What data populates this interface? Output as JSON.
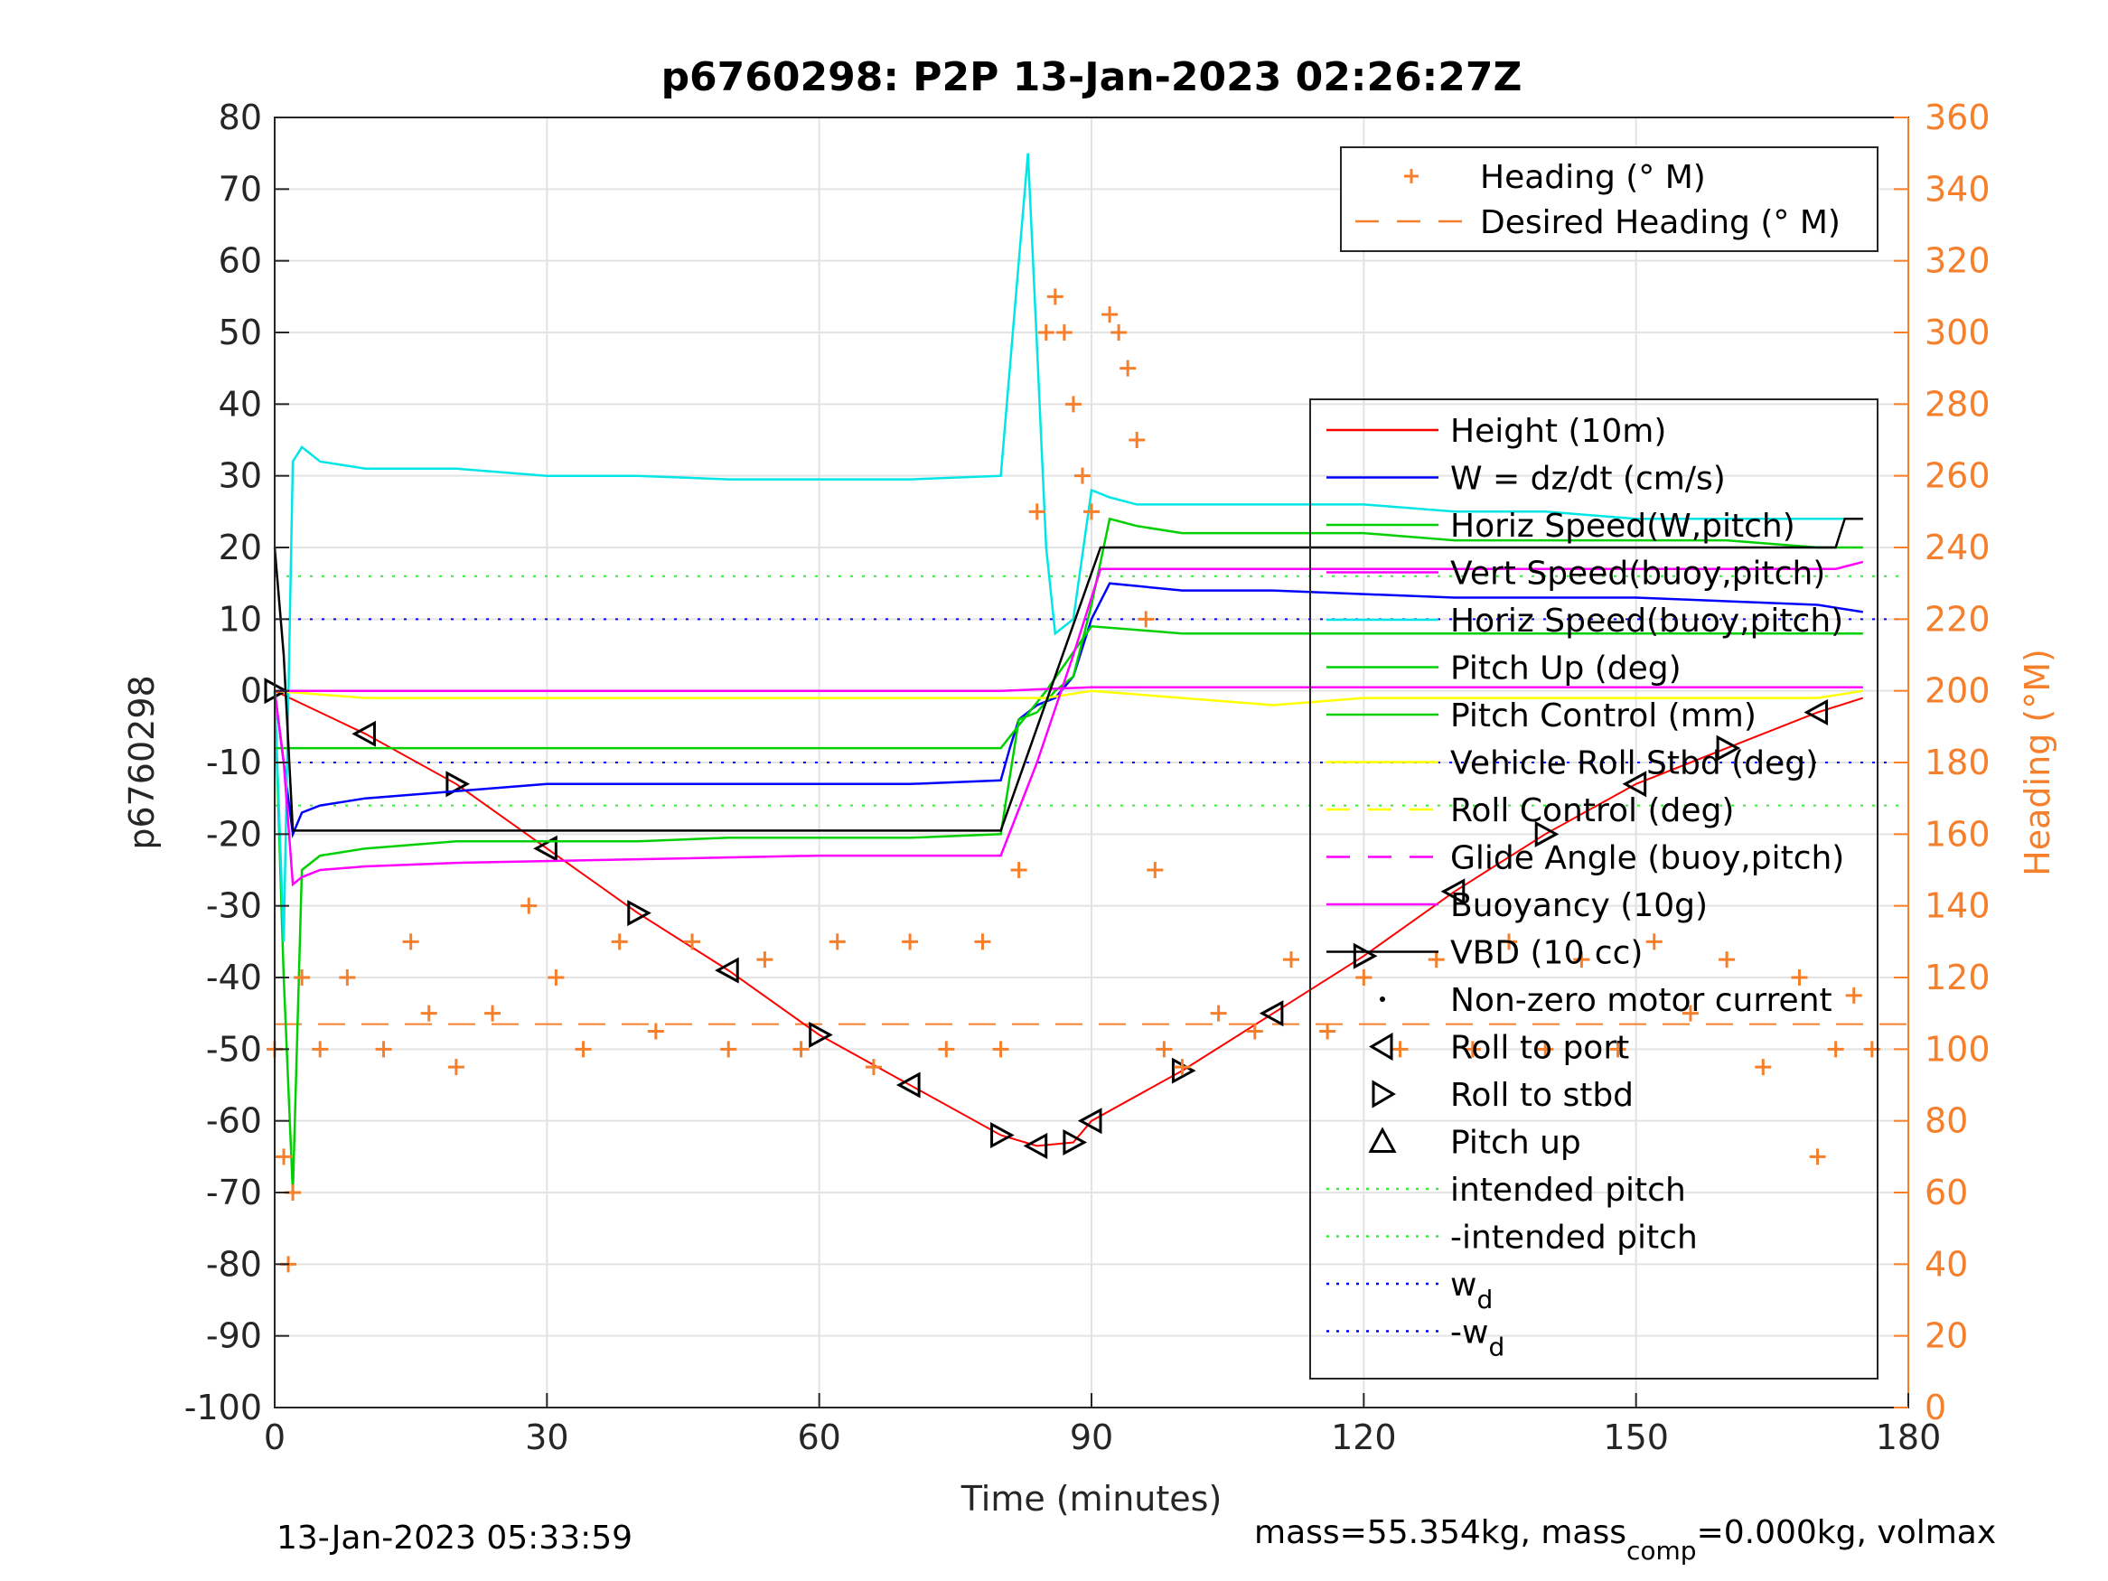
{
  "figure": {
    "title": "p6760298: P2P 13-Jan-2023 02:26:27Z",
    "footer_left": "13-Jan-2023 05:33:59",
    "footer_right": {
      "a": "mass=55.354kg, mass",
      "sub": "comp",
      "b": "=0.000kg, volmax"
    }
  },
  "colors": {
    "orange": "#f57f2b",
    "red": "#ff0000",
    "blue": "#0000ff",
    "green": "#00d000",
    "cyan": "#00e6e6",
    "magenta": "#ff00ff",
    "yellow": "#ffff00",
    "black": "#000000",
    "lightgreen": "#33ee33",
    "grid": "#e3e3e3"
  },
  "chart_data": {
    "type": "line",
    "title": "p6760298: P2P 13-Jan-2023 02:26:27Z",
    "xlabel": "Time (minutes)",
    "ylabel_left": "p6760298",
    "ylabel_right": "Heading (°M)",
    "xlim": [
      0,
      180
    ],
    "ylim_left": [
      -100,
      80
    ],
    "ylim_right": [
      0,
      360
    ],
    "x_ticks": [
      "0",
      "30",
      "60",
      "90",
      "120",
      "150",
      "180"
    ],
    "y_ticks_left": [
      "80",
      "70",
      "60",
      "50",
      "40",
      "30",
      "20",
      "10",
      "0",
      "-10",
      "-20",
      "-30",
      "-40",
      "-50",
      "-60",
      "-70",
      "-80",
      "-90",
      "-100"
    ],
    "y_ticks_right": [
      "360",
      "340",
      "320",
      "300",
      "280",
      "260",
      "240",
      "220",
      "200",
      "180",
      "160",
      "140",
      "120",
      "100",
      "80",
      "60",
      "40",
      "20",
      "0"
    ],
    "grid": true,
    "legend_top": {
      "placement": "top-right",
      "entries": [
        {
          "label": "Heading (° M)",
          "color": "orange",
          "style": "plus"
        },
        {
          "label": "Desired Heading (° M)",
          "color": "orange",
          "style": "dash"
        }
      ]
    },
    "legend_main": {
      "placement": "right",
      "entries": [
        {
          "label": "Height (10m)",
          "color": "red",
          "style": "solid"
        },
        {
          "label": "W = dz/dt (cm/s)",
          "color": "blue",
          "style": "solid"
        },
        {
          "label": "Horiz Speed(W,pitch)",
          "color": "green",
          "style": "solid"
        },
        {
          "label": "Vert Speed(buoy,pitch)",
          "color": "magenta",
          "style": "solid"
        },
        {
          "label": "Horiz Speed(buoy,pitch)",
          "color": "cyan",
          "style": "solid"
        },
        {
          "label": "Pitch Up (deg)",
          "color": "green",
          "style": "solid"
        },
        {
          "label": "Pitch Control (mm)",
          "color": "green",
          "style": "solid"
        },
        {
          "label": "Vehicle Roll Stbd (deg)",
          "color": "yellow",
          "style": "solid"
        },
        {
          "label": "Roll Control (deg)",
          "color": "yellow",
          "style": "dash"
        },
        {
          "label": "Glide Angle (buoy,pitch)",
          "color": "magenta",
          "style": "dash"
        },
        {
          "label": "Buoyancy (10g)",
          "color": "magenta",
          "style": "solid"
        },
        {
          "label": "VBD (10 cc)",
          "color": "black",
          "style": "solid"
        },
        {
          "label": "Non-zero motor current",
          "color": "black",
          "style": "dot"
        },
        {
          "label": "Roll to port",
          "color": "black",
          "style": "tri-left"
        },
        {
          "label": "Roll to stbd",
          "color": "black",
          "style": "tri-right"
        },
        {
          "label": "Pitch up",
          "color": "black",
          "style": "tri-up"
        },
        {
          "label": "intended pitch",
          "color": "lightgreen",
          "style": "dotted"
        },
        {
          "label": "-intended pitch",
          "color": "lightgreen",
          "style": "dotted"
        },
        {
          "label": "w",
          "sub": "d",
          "color": "blue",
          "style": "dotted"
        },
        {
          "label": "-w",
          "sub": "d",
          "color": "blue",
          "style": "dotted"
        }
      ]
    },
    "reference_lines": [
      {
        "name": "intended pitch",
        "y": 16,
        "color": "lightgreen"
      },
      {
        "name": "-intended pitch",
        "y": -16,
        "color": "lightgreen"
      },
      {
        "name": "w_d",
        "y": 10,
        "color": "blue"
      },
      {
        "name": "-w_d",
        "y": -10,
        "color": "blue"
      },
      {
        "name": "desired heading",
        "y_right": 107,
        "color": "orange"
      }
    ],
    "series": [
      {
        "name": "Height (10m)",
        "color": "red",
        "x": [
          0,
          10,
          20,
          30,
          40,
          50,
          60,
          70,
          80,
          84,
          88,
          90,
          100,
          110,
          120,
          130,
          140,
          150,
          160,
          170,
          175
        ],
        "y": [
          0,
          -6,
          -13,
          -22,
          -31,
          -39,
          -48,
          -55,
          -62,
          -63.5,
          -63,
          -60,
          -53,
          -45,
          -37,
          -28,
          -20,
          -13,
          -8,
          -3,
          -1
        ]
      },
      {
        "name": "W = dz/dt (cm/s)",
        "color": "blue",
        "x": [
          0,
          1,
          2,
          3,
          5,
          10,
          20,
          30,
          40,
          50,
          60,
          70,
          80,
          81,
          82,
          84,
          86,
          88,
          90,
          92,
          100,
          110,
          120,
          130,
          140,
          150,
          160,
          170,
          175
        ],
        "y": [
          0,
          -10,
          -20,
          -17,
          -16,
          -15,
          -14,
          -13,
          -13,
          -13,
          -13,
          -13,
          -12.5,
          -8,
          -4,
          -2,
          -1,
          2,
          10,
          15,
          14,
          14,
          13.5,
          13,
          13,
          13,
          12.5,
          12,
          11
        ]
      },
      {
        "name": "Horiz Speed(W,pitch)",
        "color": "green",
        "x": [
          0,
          1,
          2,
          3,
          5,
          10,
          20,
          30,
          40,
          50,
          60,
          70,
          80,
          82,
          84,
          86,
          88,
          90,
          92,
          95,
          100,
          110,
          120,
          130,
          140,
          150,
          160,
          170,
          175
        ],
        "y": [
          0,
          -40,
          -70,
          -25,
          -23,
          -22,
          -21,
          -21,
          -21,
          -20.5,
          -20.5,
          -20.5,
          -20,
          -4,
          -3,
          0,
          2,
          12,
          24,
          23,
          22,
          22,
          22,
          21,
          21,
          21,
          21,
          20,
          20
        ]
      },
      {
        "name": "Horiz Speed(buoy,pitch)",
        "color": "cyan",
        "x": [
          0,
          1,
          2,
          3,
          5,
          10,
          20,
          30,
          40,
          50,
          60,
          70,
          80,
          81,
          82,
          83,
          84,
          85,
          86,
          88,
          90,
          92,
          95,
          100,
          110,
          120,
          130,
          140,
          150,
          160,
          170,
          175
        ],
        "y": [
          0,
          -35,
          32,
          34,
          32,
          31,
          31,
          30,
          30,
          29.5,
          29.5,
          29.5,
          30,
          45,
          60,
          75,
          48,
          20,
          8,
          10,
          28,
          27,
          26,
          26,
          26,
          26,
          25,
          25,
          24,
          24,
          24,
          24
        ]
      },
      {
        "name": "Pitch Up (deg)",
        "color": "green",
        "x": [
          0,
          20,
          40,
          60,
          80,
          85,
          90,
          100,
          120,
          140,
          160,
          175
        ],
        "y": [
          -8,
          -8,
          -8,
          -8,
          -8,
          0,
          9,
          8,
          8,
          8,
          8,
          8
        ]
      },
      {
        "name": "Vehicle Roll Stbd (deg)",
        "color": "yellow",
        "x": [
          0,
          10,
          20,
          30,
          40,
          50,
          60,
          70,
          80,
          85,
          90,
          100,
          110,
          120,
          130,
          140,
          150,
          160,
          170,
          175
        ],
        "y": [
          0,
          -1,
          -1,
          -1,
          -1,
          -1,
          -1,
          -1,
          -1,
          -1,
          0,
          -1,
          -2,
          -1,
          -1,
          -1,
          -1,
          -1,
          -1,
          0
        ]
      },
      {
        "name": "Glide Angle (buoy,pitch)",
        "color": "magenta",
        "x": [
          0,
          20,
          40,
          60,
          80,
          90,
          110,
          130,
          150,
          175
        ],
        "y": [
          0,
          0,
          0,
          0,
          0,
          0.5,
          0.5,
          0.5,
          0.5,
          0.5
        ]
      },
      {
        "name": "Buoyancy (10g)",
        "color": "magenta",
        "x": [
          0,
          1,
          2,
          3,
          5,
          10,
          20,
          40,
          60,
          80,
          84,
          88,
          91,
          100,
          120,
          140,
          160,
          172,
          175
        ],
        "y": [
          0,
          -10,
          -27,
          -26,
          -25,
          -24.5,
          -24,
          -23.5,
          -23,
          -23,
          -10,
          5,
          17,
          17,
          17,
          17,
          17,
          17,
          18
        ]
      },
      {
        "name": "VBD (10 cc)",
        "color": "black",
        "x": [
          0,
          1,
          2,
          80,
          91,
          172,
          173,
          175
        ],
        "y": [
          20,
          5,
          -19.5,
          -19.5,
          20,
          20,
          24,
          24
        ]
      },
      {
        "name": "Heading (° M)",
        "color": "orange",
        "style": "plus",
        "axis": "right",
        "x": [
          0,
          1,
          1.5,
          2,
          3,
          5,
          8,
          12,
          15,
          17,
          20,
          24,
          28,
          31,
          34,
          38,
          42,
          46,
          50,
          54,
          58,
          62,
          66,
          70,
          74,
          78,
          80,
          82,
          84,
          85,
          86,
          87,
          88,
          89,
          90,
          92,
          93,
          94,
          95,
          96,
          97,
          98,
          100,
          104,
          108,
          112,
          116,
          120,
          124,
          128,
          132,
          136,
          140,
          144,
          148,
          152,
          156,
          160,
          164,
          168,
          170,
          172,
          174,
          176
        ],
        "y": [
          100,
          70,
          40,
          60,
          120,
          100,
          120,
          100,
          130,
          110,
          95,
          110,
          140,
          120,
          100,
          130,
          105,
          130,
          100,
          125,
          100,
          130,
          95,
          130,
          100,
          130,
          100,
          150,
          250,
          300,
          310,
          300,
          280,
          260,
          250,
          305,
          300,
          290,
          270,
          220,
          150,
          100,
          95,
          110,
          105,
          125,
          105,
          120,
          100,
          125,
          100,
          130,
          100,
          125,
          100,
          130,
          110,
          125,
          95,
          120,
          70,
          100,
          115,
          100
        ]
      }
    ]
  }
}
